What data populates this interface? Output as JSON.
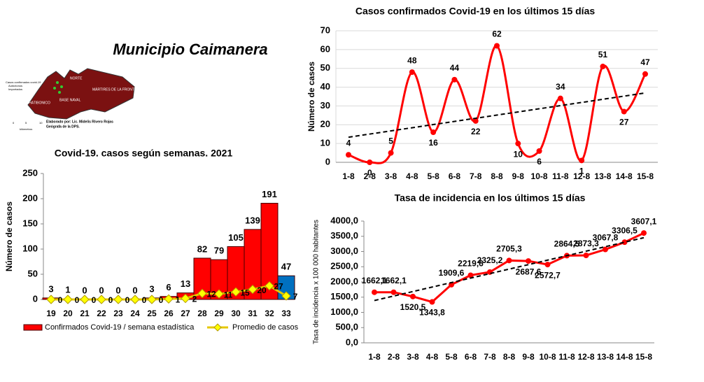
{
  "title": "Municipio Caimanera",
  "map": {
    "labels": [
      "NORTE",
      "MÁRTIRES DE LA FRONTERA",
      "CIRC. ESP. HATIBONICO",
      "BASE NAVAL"
    ],
    "legend": [
      "Casos confirmados covid-19",
      "Autóctonos",
      "Importados"
    ],
    "scale": [
      "0",
      "5",
      "10",
      "kilómetros"
    ],
    "credit": [
      "Elaborado por: Lic. Midelis Rivero Rojas",
      "Geógrafa de la DPS."
    ]
  },
  "chart_data": [
    {
      "type": "bar",
      "title": "Covid-19. casos según semanas. 2021",
      "y_label": "Número de casos",
      "categories": [
        "19",
        "20",
        "21",
        "22",
        "23",
        "24",
        "25",
        "26",
        "27",
        "28",
        "29",
        "30",
        "31",
        "32",
        "33"
      ],
      "ylim": [
        0,
        250
      ],
      "yticks": [
        0,
        50,
        100,
        150,
        200,
        250
      ],
      "grid": false,
      "series": [
        {
          "name": "Confirmados Covid-19 / semana estadística",
          "type": "bar",
          "color": "#ff0000",
          "colors": [
            "#ff0000",
            "#ff0000",
            "#ff0000",
            "#ff0000",
            "#ff0000",
            "#ff0000",
            "#ff0000",
            "#ff0000",
            "#ff0000",
            "#ff0000",
            "#ff0000",
            "#ff0000",
            "#ff0000",
            "#ff0000",
            "#0070c0"
          ],
          "values": [
            3,
            1,
            0,
            0,
            0,
            0,
            3,
            6,
            13,
            82,
            79,
            105,
            139,
            191,
            47
          ]
        },
        {
          "name": "Promedio de casos",
          "type": "line",
          "color": "#ffff00",
          "values": [
            0,
            0,
            0,
            0,
            0,
            0,
            0,
            1,
            2,
            12,
            11,
            15,
            20,
            27,
            7
          ]
        }
      ]
    },
    {
      "type": "line",
      "title": "Casos confirmados Covid-19 en los últimos 15 días",
      "y_label": "Número de casos",
      "categories": [
        "1-8",
        "2-8",
        "3-8",
        "4-8",
        "5-8",
        "6-8",
        "7-8",
        "8-8",
        "9-8",
        "10-8",
        "11-8",
        "12-8",
        "13-8",
        "14-8",
        "15-8"
      ],
      "ylim": [
        0,
        70
      ],
      "yticks": [
        0,
        10,
        20,
        30,
        40,
        50,
        60,
        70
      ],
      "grid": true,
      "smooth": true,
      "trendline": true,
      "series": [
        {
          "name": "Casos",
          "color": "#ff0000",
          "values": [
            4,
            0,
            5,
            48,
            16,
            44,
            22,
            62,
            10,
            6,
            34,
            1,
            51,
            27,
            47
          ]
        }
      ]
    },
    {
      "type": "line",
      "title": "Tasa de incidencia en los últimos 15 días",
      "y_label": "Tasa de incidencia x 100 000 habitantes",
      "categories": [
        "1-8",
        "2-8",
        "3-8",
        "4-8",
        "5-8",
        "6-8",
        "7-8",
        "8-8",
        "9-8",
        "10-8",
        "11-8",
        "12-8",
        "13-8",
        "14-8",
        "15-8"
      ],
      "ylim": [
        0,
        4000
      ],
      "yticks": [
        {
          "value": 0,
          "label": "0,0"
        },
        {
          "value": 500,
          "label": "500,0"
        },
        {
          "value": 1000,
          "label": "1000,0"
        },
        {
          "value": 1500,
          "label": "1500,0"
        },
        {
          "value": 2000,
          "label": "2000,0"
        },
        {
          "value": 2500,
          "label": "2500,0"
        },
        {
          "value": 3000,
          "label": "3000,0"
        },
        {
          "value": 3500,
          "label": "3500,0"
        },
        {
          "value": 4000,
          "label": "4000,0"
        }
      ],
      "grid": false,
      "smooth": false,
      "trendline": true,
      "series": [
        {
          "name": "Tasa",
          "color": "#ff0000",
          "values": [
            1662.1,
            1662.1,
            1520.5,
            1343.8,
            1909.6,
            2219.6,
            2325.2,
            2705.3,
            2687.6,
            2572.7,
            2864.5,
            2873.3,
            3067.8,
            3306.5,
            3607.1
          ],
          "value_labels": [
            "1662,1",
            "1662,1",
            "1520,5",
            "1343,8",
            "1909,6",
            "2219,6",
            "2325,2",
            "2705,3",
            "2687,6",
            "2572,7",
            "2864,5",
            "2873,3",
            "3067,8",
            "3306,5",
            "3607,1"
          ]
        }
      ]
    }
  ]
}
